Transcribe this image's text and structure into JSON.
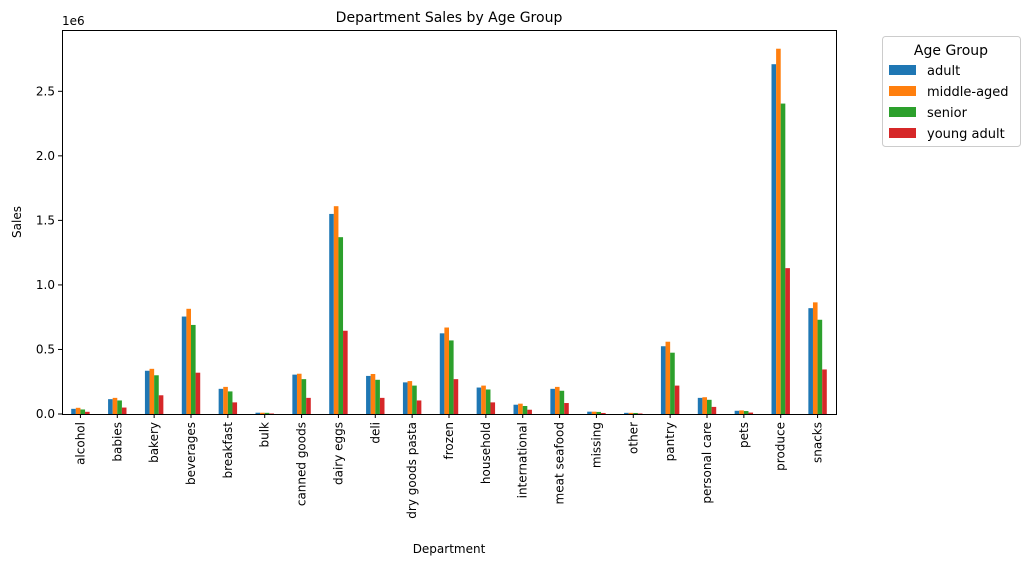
{
  "chart_data": {
    "type": "bar",
    "title": "Department Sales by Age Group",
    "xlabel": "Department",
    "ylabel": "Sales",
    "y_scale_label": "1e6",
    "ylim": [
      0,
      2975000
    ],
    "yticks": [
      0,
      500000,
      1000000,
      1500000,
      2000000,
      2500000
    ],
    "ytick_labels": [
      "0.0",
      "0.5",
      "1.0",
      "1.5",
      "2.0",
      "2.5"
    ],
    "grid": false,
    "legend": {
      "title": "Age Group",
      "placement": "outside-top-right"
    },
    "categories": [
      "alcohol",
      "babies",
      "bakery",
      "beverages",
      "breakfast",
      "bulk",
      "canned goods",
      "dairy eggs",
      "deli",
      "dry goods pasta",
      "frozen",
      "household",
      "international",
      "meat seafood",
      "missing",
      "other",
      "pantry",
      "personal care",
      "pets",
      "produce",
      "snacks"
    ],
    "series": [
      {
        "name": "adult",
        "color": "#1f77b4",
        "values": [
          40000,
          115000,
          335000,
          755000,
          195000,
          10000,
          305000,
          1550000,
          295000,
          245000,
          625000,
          205000,
          72000,
          195000,
          18000,
          9000,
          525000,
          125000,
          25000,
          2710000,
          820000
        ]
      },
      {
        "name": "middle-aged",
        "color": "#ff7f0e",
        "values": [
          48000,
          125000,
          350000,
          815000,
          210000,
          10000,
          312000,
          1610000,
          310000,
          255000,
          670000,
          220000,
          80000,
          210000,
          18000,
          9000,
          560000,
          130000,
          28000,
          2830000,
          865000
        ]
      },
      {
        "name": "senior",
        "color": "#2ca02c",
        "values": [
          35000,
          105000,
          300000,
          690000,
          175000,
          9000,
          270000,
          1370000,
          265000,
          220000,
          570000,
          190000,
          62000,
          180000,
          16000,
          8000,
          475000,
          110000,
          23000,
          2405000,
          730000
        ]
      },
      {
        "name": "young adult",
        "color": "#d62728",
        "values": [
          17000,
          50000,
          145000,
          320000,
          90000,
          4000,
          125000,
          645000,
          125000,
          105000,
          270000,
          90000,
          33000,
          85000,
          8000,
          4000,
          220000,
          55000,
          11000,
          1130000,
          345000
        ]
      }
    ]
  }
}
